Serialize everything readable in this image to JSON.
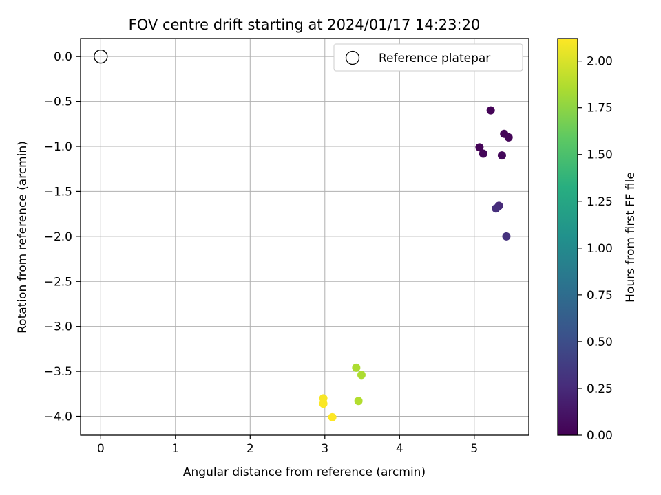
{
  "chart_data": {
    "type": "scatter",
    "title": "FOV centre drift starting at 2024/01/17 14:23:20",
    "xlabel": "Angular distance from reference (arcmin)",
    "ylabel": "Rotation from reference (arcmin)",
    "xlim": [
      -0.27,
      5.73
    ],
    "ylim": [
      -4.21,
      0.2
    ],
    "xticks": [
      0,
      1,
      2,
      3,
      4,
      5
    ],
    "xtick_labels": [
      "0",
      "1",
      "2",
      "3",
      "4",
      "5"
    ],
    "yticks": [
      0.0,
      -0.5,
      -1.0,
      -1.5,
      -2.0,
      -2.5,
      -3.0,
      -3.5,
      -4.0
    ],
    "ytick_labels": [
      "0.0",
      "−0.5",
      "−1.0",
      "−1.5",
      "−2.0",
      "−2.5",
      "−3.0",
      "−3.5",
      "−4.0"
    ],
    "grid": true,
    "legend": {
      "position": "top-right",
      "entries": [
        "Reference platepar"
      ]
    },
    "reference_point": {
      "x": 0.0,
      "y": 0.0
    },
    "points": [
      {
        "x": 5.22,
        "y": -0.6,
        "hours": 0.02
      },
      {
        "x": 5.4,
        "y": -0.86,
        "hours": 0.02
      },
      {
        "x": 5.46,
        "y": -0.9,
        "hours": 0.03
      },
      {
        "x": 5.07,
        "y": -1.01,
        "hours": 0.02
      },
      {
        "x": 5.12,
        "y": -1.08,
        "hours": 0.03
      },
      {
        "x": 5.37,
        "y": -1.1,
        "hours": 0.04
      },
      {
        "x": 5.33,
        "y": -1.66,
        "hours": 0.25
      },
      {
        "x": 5.29,
        "y": -1.69,
        "hours": 0.28
      },
      {
        "x": 5.43,
        "y": -2.0,
        "hours": 0.3
      },
      {
        "x": 3.42,
        "y": -3.46,
        "hours": 1.85
      },
      {
        "x": 3.49,
        "y": -3.54,
        "hours": 1.85
      },
      {
        "x": 3.45,
        "y": -3.83,
        "hours": 1.87
      },
      {
        "x": 2.98,
        "y": -3.8,
        "hours": 2.1
      },
      {
        "x": 2.98,
        "y": -3.86,
        "hours": 2.11
      },
      {
        "x": 3.1,
        "y": -4.01,
        "hours": 2.12
      }
    ],
    "colorbar": {
      "label": "Hours from first FF file",
      "colormap": "viridis",
      "range": [
        0,
        2.12
      ],
      "ticks": [
        0.0,
        0.25,
        0.5,
        0.75,
        1.0,
        1.25,
        1.5,
        1.75,
        2.0
      ],
      "tick_labels": [
        "0.00",
        "0.25",
        "0.50",
        "0.75",
        "1.00",
        "1.25",
        "1.50",
        "1.75",
        "2.00"
      ]
    }
  }
}
